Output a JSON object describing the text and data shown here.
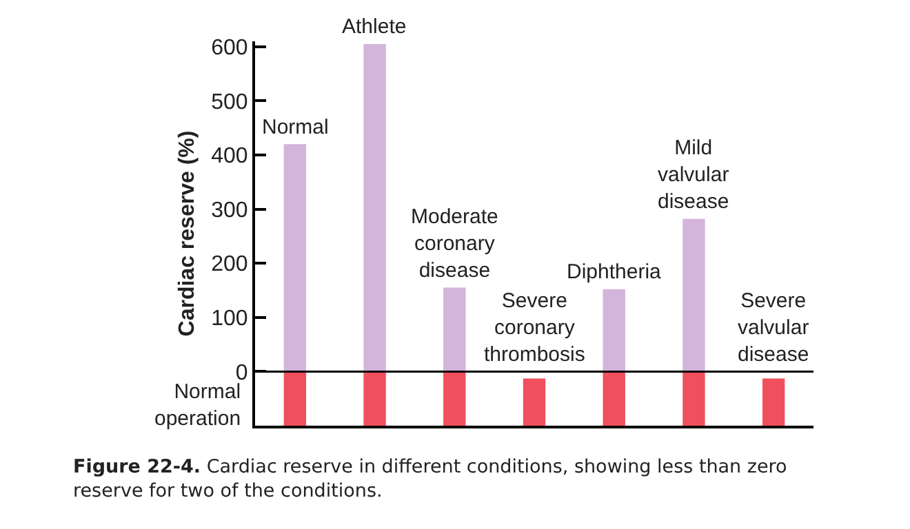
{
  "chart_data": {
    "type": "bar",
    "ylabel": "Cardiac reserve (%)",
    "categories": [
      "Normal",
      "Athlete",
      "Moderate coronary disease",
      "Severe coronary thrombosis",
      "Diphtheria",
      "Mild valvular disease",
      "Severe valvular disease"
    ],
    "series": [
      {
        "color": "#f0505e",
        "base": [
          -100,
          -100,
          -100,
          -100,
          -100,
          -100,
          -100
        ],
        "values": [
          100,
          100,
          100,
          87,
          100,
          100,
          87
        ]
      },
      {
        "color": "#d3b4da",
        "values": [
          420,
          605,
          155,
          0,
          152,
          282,
          0
        ]
      }
    ],
    "ylim": [
      -100,
      610
    ],
    "yticks": [
      0,
      100,
      200,
      300,
      400,
      500,
      600
    ],
    "tick_labels": "y",
    "grid": false,
    "ref_lines": [
      {
        "axis": "y",
        "value": 0,
        "label": "Normal operation",
        "color": "#000000"
      }
    ],
    "annotations": [
      "Figure 22-4. Cardiac reserve in different conditions, showing less than zero reserve for two of the conditions."
    ]
  }
}
